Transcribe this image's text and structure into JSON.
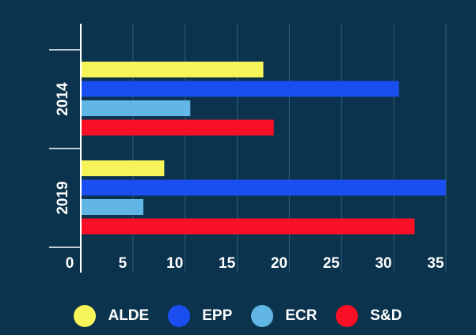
{
  "chart_data": {
    "type": "bar",
    "orientation": "horizontal",
    "categories": [
      "2014",
      "2019"
    ],
    "series": [
      {
        "name": "ALDE",
        "color": "#f5f55a",
        "values": [
          17.5,
          8
        ]
      },
      {
        "name": "EPP",
        "color": "#1a4ef0",
        "values": [
          30.5,
          35
        ]
      },
      {
        "name": "ECR",
        "color": "#62b6e6",
        "values": [
          10.5,
          6
        ]
      },
      {
        "name": "S&D",
        "color": "#fb0f27",
        "values": [
          18.5,
          32
        ]
      }
    ],
    "xlim": [
      0,
      35
    ],
    "xticks": [
      0,
      5,
      10,
      15,
      20,
      25,
      30,
      35
    ],
    "grid": true,
    "legend_position": "bottom",
    "title": "",
    "xlabel": "",
    "ylabel": ""
  },
  "colors": {
    "background": "#0b334d",
    "grid": "#2c5670",
    "axis": "#ffffff"
  }
}
